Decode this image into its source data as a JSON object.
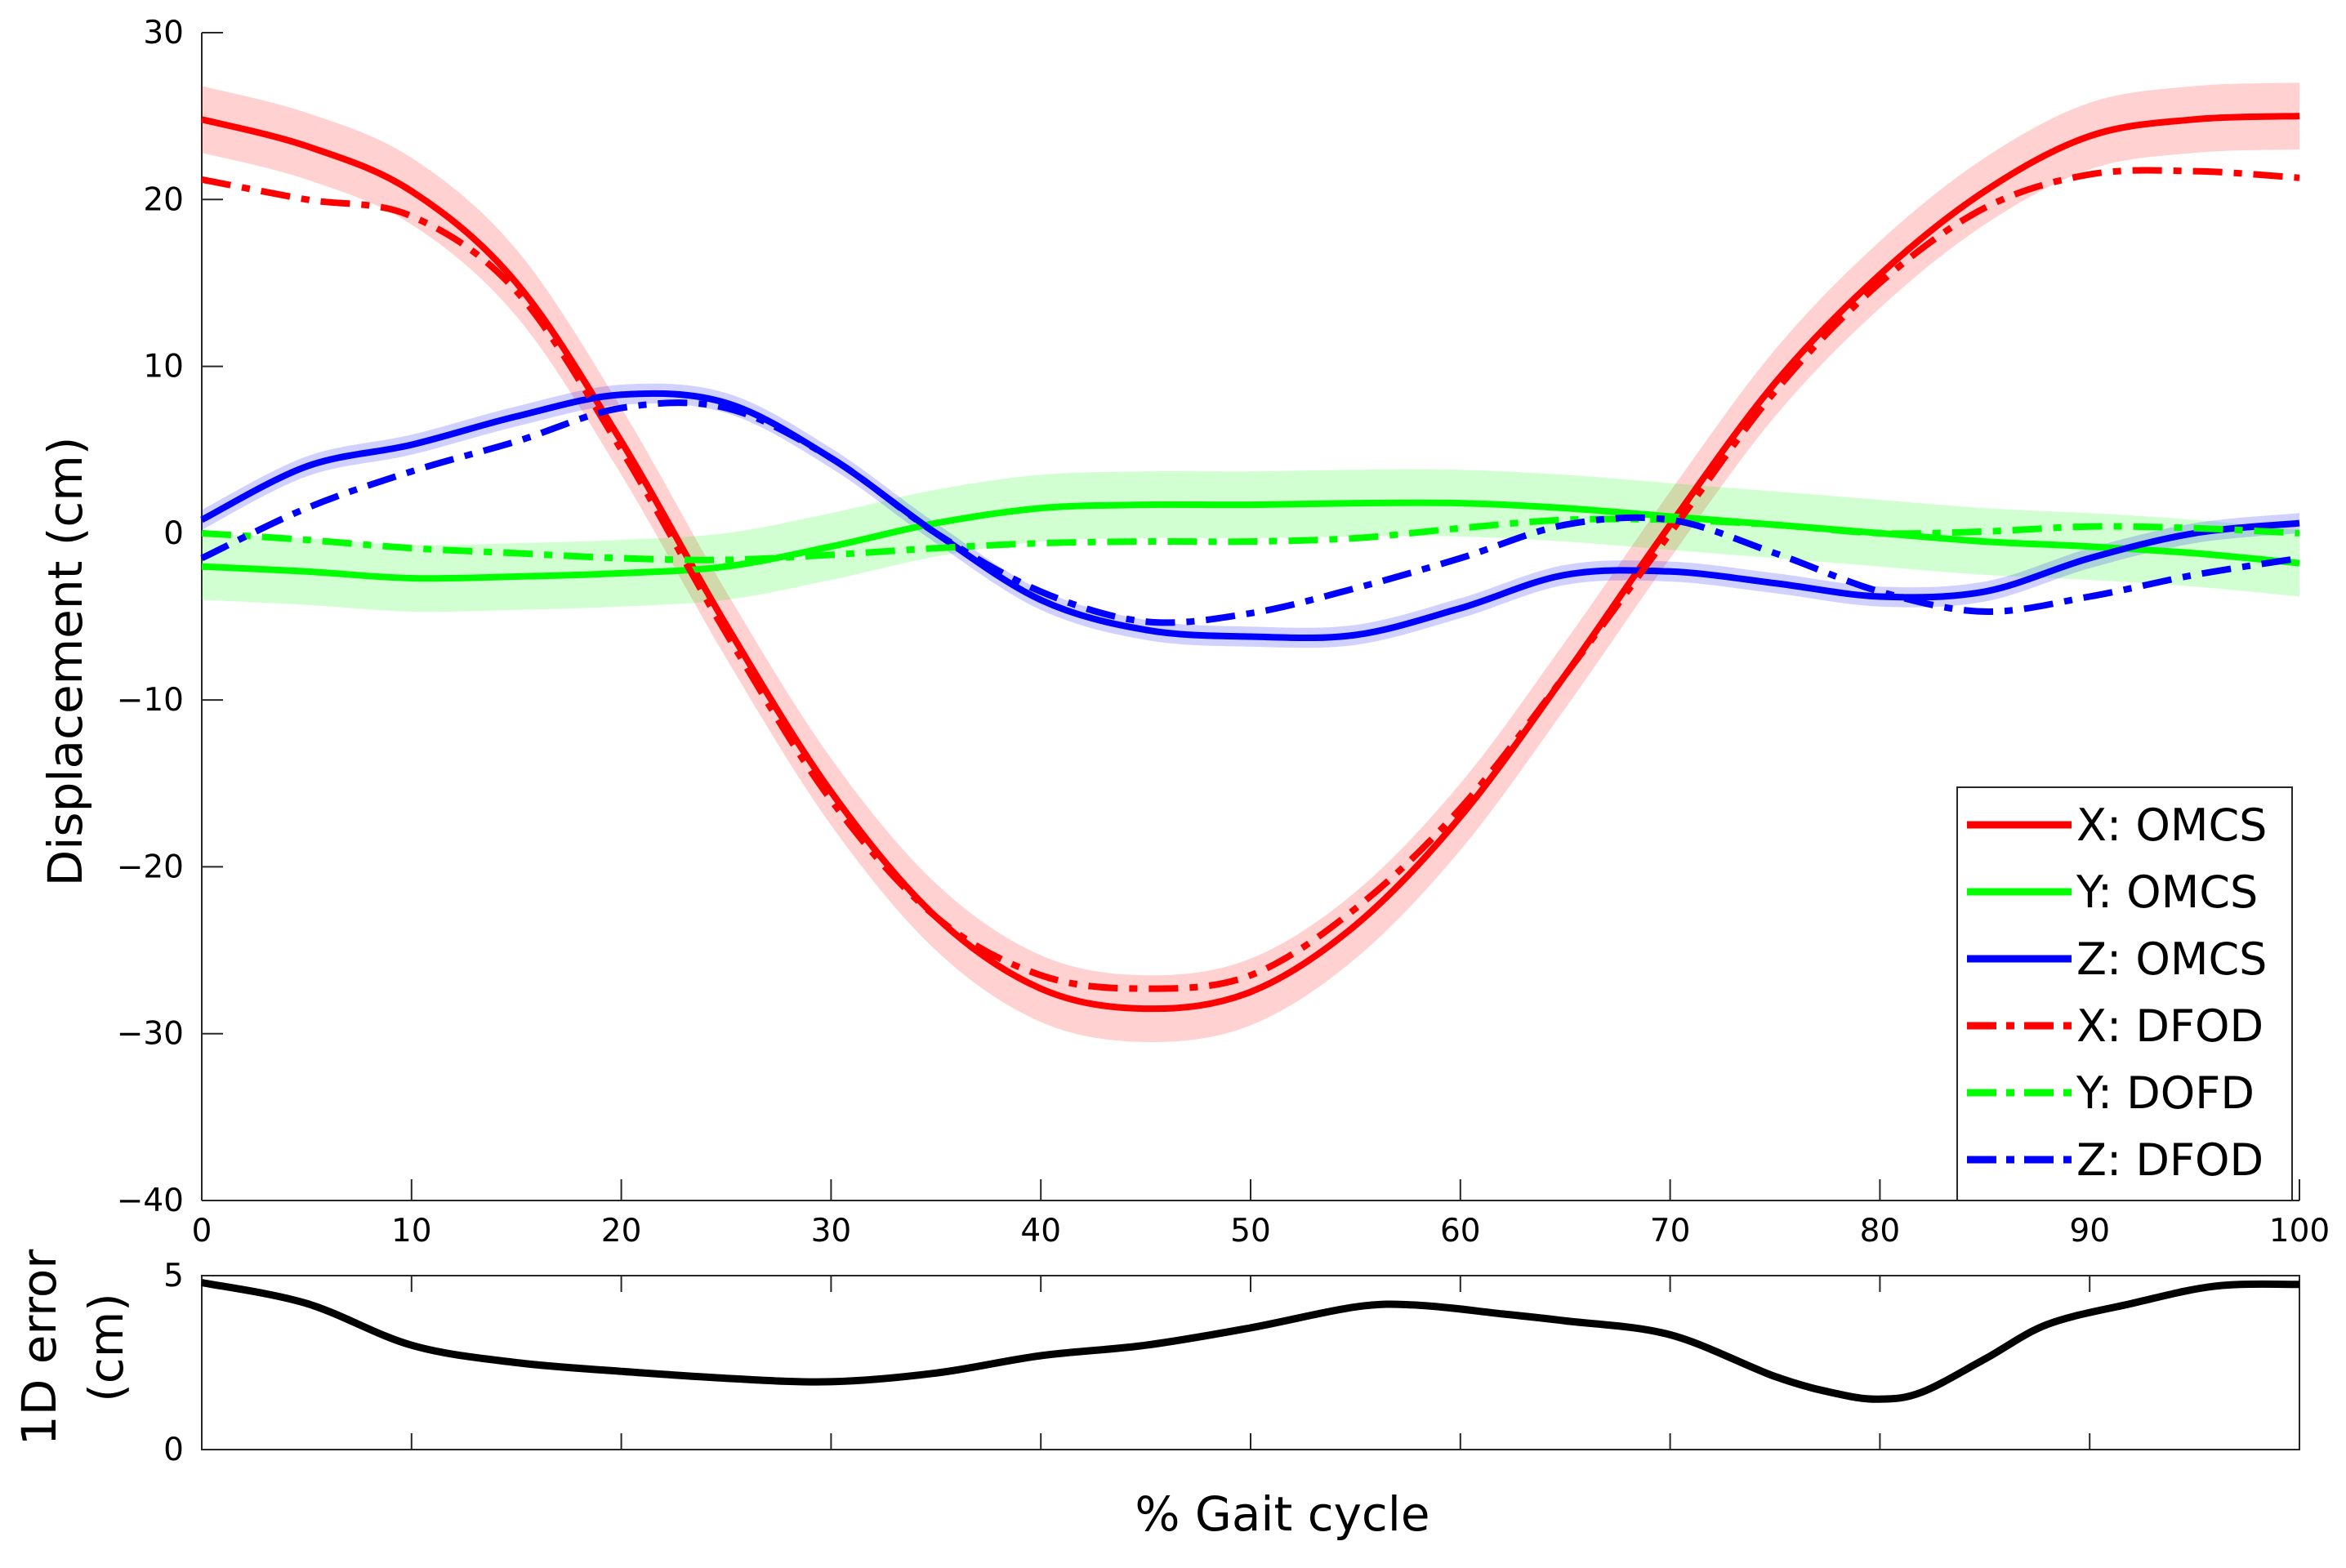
{
  "chart_data": [
    {
      "type": "line",
      "panel": "main",
      "xlabel": "",
      "ylabel": "Displacement (cm)",
      "xlim": [
        0,
        100
      ],
      "ylim": [
        -40,
        30
      ],
      "xticks": [
        0,
        10,
        20,
        30,
        40,
        50,
        60,
        70,
        80,
        90,
        100
      ],
      "yticks": [
        30,
        20,
        10,
        0,
        -10,
        -20,
        -30,
        -40
      ],
      "ytick_labels": [
        "30",
        "20",
        "10",
        "0",
        "−10",
        "−20",
        "−30",
        "−40"
      ],
      "legend_position": "bottom-right",
      "series": [
        {
          "name": "X: OMCS",
          "color": "#ff0000",
          "style": "solid",
          "band": 2.0,
          "x": [
            0,
            5,
            10,
            15,
            20,
            25,
            30,
            35,
            40,
            45,
            50,
            55,
            60,
            65,
            70,
            75,
            80,
            85,
            90,
            95,
            100
          ],
          "values": [
            24.8,
            23.2,
            20.5,
            15.0,
            5.5,
            -5.5,
            -15.5,
            -23.0,
            -27.3,
            -28.5,
            -27.5,
            -23.5,
            -17.0,
            -8.5,
            0.5,
            9.0,
            15.5,
            20.5,
            23.8,
            24.8,
            25.0
          ]
        },
        {
          "name": "Y: OMCS",
          "color": "#00ff00",
          "style": "solid",
          "band": 2.0,
          "x": [
            0,
            5,
            10,
            15,
            20,
            25,
            30,
            35,
            40,
            45,
            50,
            55,
            60,
            65,
            70,
            75,
            80,
            85,
            90,
            95,
            100
          ],
          "values": [
            -2.0,
            -2.3,
            -2.7,
            -2.6,
            -2.4,
            -2.0,
            -0.8,
            0.6,
            1.5,
            1.7,
            1.7,
            1.8,
            1.8,
            1.5,
            1.0,
            0.5,
            0.0,
            -0.5,
            -0.8,
            -1.2,
            -1.8
          ]
        },
        {
          "name": "Z: OMCS",
          "color": "#0000ff",
          "style": "solid",
          "band": 0.6,
          "x": [
            0,
            5,
            10,
            15,
            20,
            25,
            30,
            35,
            40,
            45,
            50,
            55,
            60,
            65,
            70,
            75,
            80,
            85,
            90,
            95,
            100
          ],
          "values": [
            0.8,
            4.0,
            5.3,
            7.0,
            8.3,
            7.8,
            4.5,
            0.0,
            -4.0,
            -5.8,
            -6.2,
            -6.1,
            -4.5,
            -2.5,
            -2.3,
            -3.0,
            -3.8,
            -3.5,
            -1.5,
            0.0,
            0.6
          ]
        },
        {
          "name": "X: DFOD",
          "color": "#ff0000",
          "style": "dashdot",
          "x": [
            0,
            5,
            10,
            15,
            20,
            25,
            30,
            35,
            40,
            45,
            50,
            55,
            60,
            65,
            70,
            75,
            80,
            85,
            90,
            95,
            100
          ],
          "values": [
            21.2,
            20.0,
            19.0,
            14.5,
            5.0,
            -6.0,
            -16.0,
            -23.0,
            -26.5,
            -27.3,
            -26.5,
            -22.5,
            -16.5,
            -8.5,
            0.0,
            8.5,
            15.0,
            19.5,
            21.5,
            21.7,
            21.3
          ]
        },
        {
          "name": "Y: DOFD",
          "color": "#00ff00",
          "style": "dashdot",
          "x": [
            0,
            5,
            10,
            15,
            20,
            25,
            30,
            35,
            40,
            45,
            50,
            55,
            60,
            65,
            70,
            75,
            80,
            85,
            90,
            95,
            100
          ],
          "values": [
            0.0,
            -0.4,
            -0.9,
            -1.2,
            -1.5,
            -1.6,
            -1.3,
            -0.9,
            -0.6,
            -0.5,
            -0.5,
            -0.3,
            0.3,
            0.8,
            0.8,
            0.5,
            0.0,
            0.1,
            0.4,
            0.3,
            0.0
          ]
        },
        {
          "name": "Z: DFOD",
          "color": "#0000ff",
          "style": "dashdot",
          "x": [
            0,
            5,
            10,
            15,
            20,
            25,
            30,
            35,
            40,
            45,
            50,
            55,
            60,
            65,
            70,
            75,
            80,
            85,
            90,
            95,
            100
          ],
          "values": [
            -1.5,
            1.5,
            3.7,
            5.5,
            7.5,
            7.5,
            4.5,
            0.0,
            -3.5,
            -5.3,
            -4.8,
            -3.3,
            -1.5,
            0.5,
            0.8,
            -1.2,
            -3.5,
            -4.7,
            -3.8,
            -2.5,
            -1.5
          ]
        }
      ]
    },
    {
      "type": "line",
      "panel": "error",
      "xlabel": "% Gait cycle",
      "ylabel_lines": [
        "1D error",
        "(cm)"
      ],
      "xlim": [
        0,
        100
      ],
      "ylim": [
        0,
        5
      ],
      "yticks": [
        0,
        5
      ],
      "ytick_labels": [
        "0",
        "5"
      ],
      "series": [
        {
          "name": "1D error",
          "color": "#000000",
          "style": "solid",
          "x": [
            0,
            5,
            10,
            15,
            20,
            25,
            30,
            35,
            40,
            45,
            50,
            55,
            58,
            62,
            65,
            70,
            75,
            78,
            80,
            82,
            85,
            88,
            92,
            96,
            100
          ],
          "values": [
            4.8,
            4.2,
            3.0,
            2.5,
            2.25,
            2.05,
            1.95,
            2.2,
            2.7,
            3.0,
            3.5,
            4.1,
            4.15,
            3.9,
            3.7,
            3.3,
            2.1,
            1.6,
            1.45,
            1.65,
            2.6,
            3.6,
            4.2,
            4.7,
            4.75
          ]
        }
      ]
    }
  ]
}
